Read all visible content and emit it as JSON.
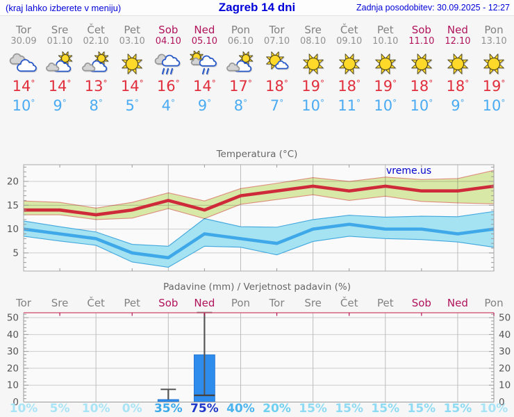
{
  "header": {
    "left": "(kraj lahko izberete v meniju)",
    "title": "Zagreb 14 dni",
    "right": "Zadnja posodobitev: 30.09.2025 - 12:27"
  },
  "watermark": "vreme.us",
  "colors": {
    "weekday": "#818181",
    "weekend": "#b0135b",
    "tmax": "#e02e3c",
    "tmin": "#4aabf2",
    "header_blue": "#0000d8",
    "grid": "#cccccc",
    "vgrid": "#bcbcbc",
    "precip_topline": "#d4647f",
    "bar": "#2e8cec",
    "whisker": "#555555"
  },
  "days": [
    {
      "name": "Tor",
      "date": "30.09",
      "weekend": false,
      "icon": "cloudy",
      "tmax": "14",
      "tmin": "10",
      "prob": "10%",
      "prob_color": "#a9e4f6"
    },
    {
      "name": "Sre",
      "date": "01.10",
      "weekend": false,
      "icon": "partly",
      "tmax": "14",
      "tmin": "9",
      "prob": "5%",
      "prob_color": "#a9e4f6"
    },
    {
      "name": "Čet",
      "date": "02.10",
      "weekend": false,
      "icon": "partly",
      "tmax": "13",
      "tmin": "8",
      "prob": "10%",
      "prob_color": "#a9e4f6"
    },
    {
      "name": "Pet",
      "date": "03.10",
      "weekend": false,
      "icon": "sunny",
      "tmax": "14",
      "tmin": "5",
      "prob": "0%",
      "prob_color": "#a9e4f6"
    },
    {
      "name": "Sob",
      "date": "04.10",
      "weekend": true,
      "icon": "rain",
      "tmax": "16",
      "tmin": "4",
      "prob": "35%",
      "prob_color": "#3ba9ea"
    },
    {
      "name": "Ned",
      "date": "05.10",
      "weekend": true,
      "icon": "sun-rain",
      "tmax": "14",
      "tmin": "9",
      "prob": "75%",
      "prob_color": "#1f37c9"
    },
    {
      "name": "Pon",
      "date": "06.10",
      "weekend": false,
      "icon": "partly",
      "tmax": "17",
      "tmin": "8",
      "prob": "40%",
      "prob_color": "#4bb4ee"
    },
    {
      "name": "Tor",
      "date": "07.10",
      "weekend": false,
      "icon": "mostly-sunny",
      "tmax": "18",
      "tmin": "7",
      "prob": "20%",
      "prob_color": "#6fd0f0"
    },
    {
      "name": "Sre",
      "date": "08.10",
      "weekend": false,
      "icon": "sunny",
      "tmax": "19",
      "tmin": "10",
      "prob": "15%",
      "prob_color": "#8edbf3"
    },
    {
      "name": "Čet",
      "date": "09.10",
      "weekend": false,
      "icon": "sunny",
      "tmax": "18",
      "tmin": "11",
      "prob": "15%",
      "prob_color": "#8edbf3"
    },
    {
      "name": "Pet",
      "date": "10.10",
      "weekend": false,
      "icon": "sunny",
      "tmax": "19",
      "tmin": "10",
      "prob": "15%",
      "prob_color": "#8edbf3"
    },
    {
      "name": "Sob",
      "date": "11.10",
      "weekend": true,
      "icon": "sunny",
      "tmax": "18",
      "tmin": "10",
      "prob": "15%",
      "prob_color": "#8edbf3"
    },
    {
      "name": "Ned",
      "date": "12.10",
      "weekend": true,
      "icon": "sunny",
      "tmax": "18",
      "tmin": "9",
      "prob": "15%",
      "prob_color": "#8edbf3"
    },
    {
      "name": "Pon",
      "date": "13.10",
      "weekend": false,
      "icon": "sunny",
      "tmax": "19",
      "tmin": "10",
      "prob": "10%",
      "prob_color": "#a9e4f6"
    }
  ],
  "chart_data": [
    {
      "type": "line",
      "title": "Temperatura (°C)",
      "x_categories": [
        "Tor 30.09",
        "Sre 01.10",
        "Čet 02.10",
        "Pet 03.10",
        "Sob 04.10",
        "Ned 05.10",
        "Pon 06.10",
        "Tor 07.10",
        "Sre 08.10",
        "Čet 09.10",
        "Pet 10.10",
        "Sob 11.10",
        "Ned 12.10",
        "Pon 13.10"
      ],
      "ylim": [
        1.2,
        23.5
      ],
      "yticks": [
        5,
        10,
        15,
        20
      ],
      "grid": {
        "horizontal_major": true,
        "vertical_every_2_days": true
      },
      "legend": "none",
      "series": [
        {
          "name": "max-temp",
          "color": "#cf2a3a",
          "values": [
            14,
            14,
            13,
            14,
            16,
            14,
            17,
            18,
            19,
            18,
            19,
            18,
            18,
            19
          ],
          "band_hi": [
            15.9,
            15.6,
            14.4,
            15.6,
            17.6,
            15.9,
            18.5,
            19.6,
            20.8,
            20.0,
            20.9,
            20.4,
            20.6,
            22.3
          ],
          "band_lo": [
            13.0,
            13.0,
            12.0,
            12.3,
            14.3,
            12.2,
            15.2,
            16.2,
            17.2,
            16.0,
            16.9,
            15.8,
            15.5,
            15.3
          ],
          "band_color": "#dcedaa",
          "band_edge": "#e2907e"
        },
        {
          "name": "min-temp",
          "color": "#3fa8e8",
          "values": [
            10,
            9,
            8,
            5,
            4,
            9,
            8,
            7,
            10,
            11,
            10,
            10,
            9,
            10
          ],
          "band_hi": [
            11.7,
            10.5,
            9.4,
            6.8,
            6.4,
            12.2,
            10.5,
            10.4,
            12.0,
            12.9,
            12.5,
            12.7,
            12.6,
            13.7
          ],
          "band_lo": [
            8.5,
            7.5,
            6.6,
            3.1,
            2.0,
            6.4,
            6.2,
            4.6,
            7.4,
            8.5,
            8.0,
            7.8,
            7.3,
            6.2
          ],
          "band_color": "#a5e2f2",
          "band_edge": "#41a7dd"
        }
      ]
    },
    {
      "type": "bar",
      "title": "Padavine (mm) / Verjetnost padavin (%)",
      "categories": [
        "Tor",
        "Sre",
        "Čet",
        "Pet",
        "Sob",
        "Ned",
        "Pon",
        "Tor",
        "Sre",
        "Čet",
        "Pet",
        "Sob",
        "Ned",
        "Pon"
      ],
      "values_mm": [
        0,
        0,
        0,
        0,
        1.5,
        28,
        0,
        0,
        0,
        0,
        0,
        0,
        0,
        0
      ],
      "whisker_lo": [
        null,
        null,
        null,
        null,
        1.5,
        4,
        null,
        null,
        null,
        null,
        null,
        null,
        null,
        null
      ],
      "whisker_hi": [
        null,
        null,
        null,
        null,
        7.5,
        53,
        null,
        null,
        null,
        null,
        null,
        null,
        null,
        null
      ],
      "median_mm": [
        null,
        null,
        null,
        null,
        null,
        4,
        null,
        null,
        null,
        null,
        null,
        null,
        null,
        null
      ],
      "probability_pct": [
        10,
        5,
        10,
        0,
        35,
        75,
        40,
        20,
        15,
        15,
        15,
        15,
        15,
        10
      ],
      "ylim": [
        0,
        52.9
      ],
      "yticks": [
        0,
        10,
        20,
        30,
        40,
        50
      ],
      "bar_color": "#2e8cec"
    }
  ]
}
